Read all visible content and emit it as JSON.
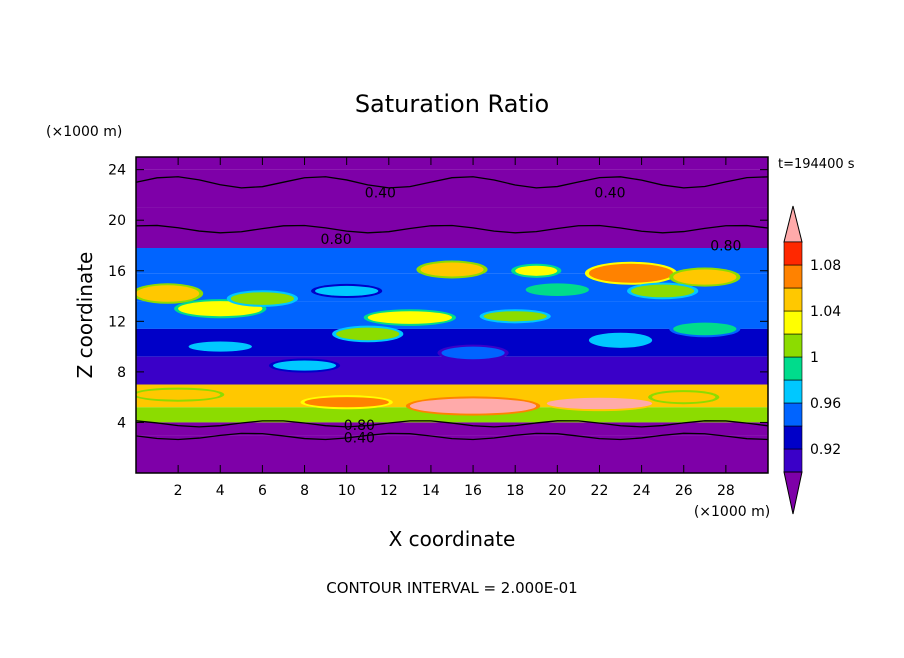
{
  "chart_data": {
    "type": "heatmap",
    "title": "Saturation Ratio",
    "xlabel": "X coordinate",
    "ylabel": "Z coordinate",
    "x_unit_label": "(×1000 m)",
    "y_unit_label": "(×1000 m)",
    "time_label": "t=194400 s",
    "footer": "CONTOUR INTERVAL = 2.000E-01",
    "xlim": [
      0,
      30
    ],
    "ylim": [
      0,
      25
    ],
    "x_ticks": [
      2,
      4,
      6,
      8,
      10,
      12,
      14,
      16,
      18,
      20,
      22,
      24,
      26,
      28
    ],
    "y_ticks": [
      4,
      8,
      12,
      16,
      20,
      24
    ],
    "colorbar": {
      "levels": [
        0.92,
        0.94,
        0.96,
        0.98,
        1.0,
        1.02,
        1.04,
        1.06,
        1.08,
        1.1
      ],
      "tick_labels": [
        "0.92",
        "0.96",
        "1",
        "1.04",
        "1.08"
      ],
      "colors": [
        "#7e00a8",
        "#3a00c8",
        "#0000c8",
        "#0064ff",
        "#00c8ff",
        "#00dc8c",
        "#8cdc00",
        "#ffff00",
        "#ffc800",
        "#ff8200",
        "#ff2800",
        "#ffaaaa"
      ]
    },
    "contour_labels": [
      {
        "text": "0.40",
        "x": 11.6,
        "z": 22.2
      },
      {
        "text": "0.40",
        "x": 22.5,
        "z": 22.2
      },
      {
        "text": "0.80",
        "x": 9.5,
        "z": 18.5
      },
      {
        "text": "0.80",
        "x": 28.0,
        "z": 18.0
      },
      {
        "text": "0.80",
        "x": 10.6,
        "z": 3.8
      },
      {
        "text": "0.40",
        "x": 10.6,
        "z": 2.8
      }
    ],
    "bands": [
      {
        "z": 24.0,
        "h": 1.2,
        "value": 0.2
      },
      {
        "z": 21.0,
        "h": 3.0,
        "value": 0.3
      },
      {
        "z": 17.8,
        "h": 3.2,
        "value": 0.5
      },
      {
        "z": 15.8,
        "h": 2.0,
        "value": 0.96
      },
      {
        "z": 13.6,
        "h": 2.2,
        "value": 0.97
      },
      {
        "z": 11.4,
        "h": 2.2,
        "value": 0.96
      },
      {
        "z": 9.2,
        "h": 2.2,
        "value": 0.95
      },
      {
        "z": 7.0,
        "h": 2.2,
        "value": 0.93
      },
      {
        "z": 5.2,
        "h": 1.8,
        "value": 1.06
      },
      {
        "z": 4.0,
        "h": 1.2,
        "value": 1.02
      },
      {
        "z": 3.0,
        "h": 1.0,
        "value": 0.7
      },
      {
        "z": 0.0,
        "h": 3.0,
        "value": 0.3
      }
    ],
    "blobs": [
      {
        "x": 1.5,
        "z": 14.2,
        "w": 3.0,
        "h": 1.3,
        "value": 1.07
      },
      {
        "x": 4.0,
        "z": 13.0,
        "w": 4.0,
        "h": 1.2,
        "value": 1.05
      },
      {
        "x": 6.0,
        "z": 13.8,
        "w": 3.0,
        "h": 1.0,
        "value": 1.02
      },
      {
        "x": 10.0,
        "z": 14.4,
        "w": 3.0,
        "h": 0.8,
        "value": 0.99
      },
      {
        "x": 13.0,
        "z": 12.3,
        "w": 4.0,
        "h": 1.0,
        "value": 1.04
      },
      {
        "x": 18.0,
        "z": 12.4,
        "w": 3.0,
        "h": 0.8,
        "value": 1.03
      },
      {
        "x": 15.0,
        "z": 16.1,
        "w": 3.0,
        "h": 1.1,
        "value": 1.07
      },
      {
        "x": 19.0,
        "z": 16.0,
        "w": 2.0,
        "h": 0.8,
        "value": 1.05
      },
      {
        "x": 23.5,
        "z": 15.8,
        "w": 4.0,
        "h": 1.5,
        "value": 1.09
      },
      {
        "x": 27.0,
        "z": 15.5,
        "w": 3.0,
        "h": 1.2,
        "value": 1.06
      },
      {
        "x": 25.0,
        "z": 14.4,
        "w": 3.0,
        "h": 1.0,
        "value": 1.03
      },
      {
        "x": 20.0,
        "z": 14.5,
        "w": 3.0,
        "h": 1.0,
        "value": 1.0
      },
      {
        "x": 4.0,
        "z": 10.0,
        "w": 3.0,
        "h": 0.8,
        "value": 0.99
      },
      {
        "x": 11.0,
        "z": 11.0,
        "w": 3.0,
        "h": 1.0,
        "value": 1.03
      },
      {
        "x": 23.0,
        "z": 10.5,
        "w": 3.0,
        "h": 1.2,
        "value": 0.98
      },
      {
        "x": 27.0,
        "z": 11.4,
        "w": 3.0,
        "h": 1.0,
        "value": 1.0
      },
      {
        "x": 8.0,
        "z": 8.5,
        "w": 3.0,
        "h": 0.8,
        "value": 0.98
      },
      {
        "x": 16.0,
        "z": 9.5,
        "w": 3.0,
        "h": 1.0,
        "value": 0.97
      },
      {
        "x": 10.0,
        "z": 5.6,
        "w": 4.0,
        "h": 0.8,
        "value": 1.08
      },
      {
        "x": 16.0,
        "z": 5.3,
        "w": 6.0,
        "h": 1.2,
        "value": 1.12
      },
      {
        "x": 22.0,
        "z": 5.5,
        "w": 5.0,
        "h": 0.9,
        "value": 1.1
      },
      {
        "x": 2.0,
        "z": 6.2,
        "w": 4.0,
        "h": 0.8,
        "value": 1.06
      },
      {
        "x": 26.0,
        "z": 6.0,
        "w": 3.0,
        "h": 0.8,
        "value": 1.07
      }
    ]
  }
}
